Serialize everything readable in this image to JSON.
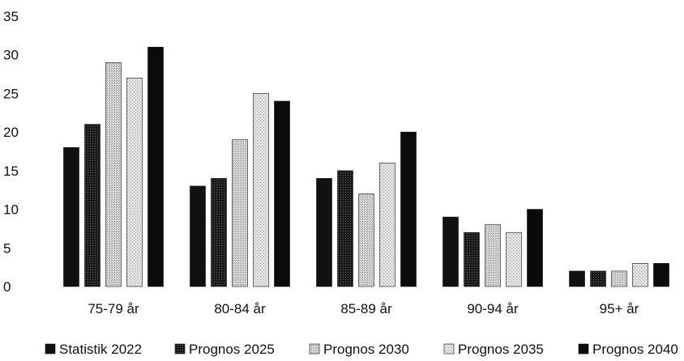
{
  "chart_data": {
    "type": "bar",
    "categories": [
      "75-79 år",
      "80-84 år",
      "85-89 år",
      "90-94 år",
      "95+ år"
    ],
    "series": [
      {
        "name": "Statistik 2022",
        "values": [
          18,
          13,
          14,
          9,
          2
        ],
        "fill": "#111111",
        "pattern": "solid"
      },
      {
        "name": "Prognos 2025",
        "values": [
          21,
          14,
          15,
          7,
          2
        ],
        "fill": "#2a2a2a",
        "pattern": "dense"
      },
      {
        "name": "Prognos 2030",
        "values": [
          29,
          19,
          12,
          8,
          2
        ],
        "fill": "#cfcfcf",
        "pattern": "dots"
      },
      {
        "name": "Prognos 2035",
        "values": [
          27,
          25,
          16,
          7,
          3
        ],
        "fill": "#dcdcdc",
        "pattern": "dots"
      },
      {
        "name": "Prognos 2040",
        "values": [
          31,
          24,
          20,
          10,
          3
        ],
        "fill": "#0b0b0b",
        "pattern": "solid"
      }
    ],
    "yticks": [
      0,
      5,
      10,
      15,
      20,
      25,
      30,
      35
    ],
    "ylim": [
      0,
      35
    ],
    "grid": false,
    "legend": "bottom"
  }
}
